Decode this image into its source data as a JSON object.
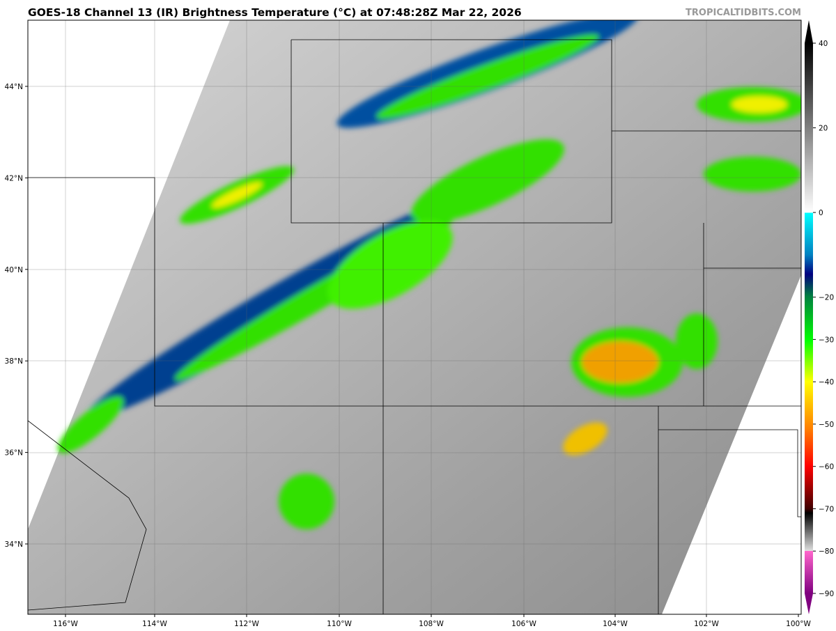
{
  "title": "GOES-18 Channel 13 (IR) Brightness Temperature (°C) at 07:48:28Z Mar 22, 2026",
  "watermark": "TROPICALTIDBITS.COM",
  "map": {
    "lon_labels": [
      "116°W",
      "114°W",
      "112°W",
      "110°W",
      "108°W",
      "106°W",
      "104°W",
      "102°W",
      "100°W"
    ],
    "lat_labels": [
      "44°N",
      "42°N",
      "40°N",
      "38°N",
      "36°N",
      "34°N"
    ]
  },
  "colorbar": {
    "ticks": [
      "40",
      "20",
      "0",
      "−20",
      "−30",
      "−40",
      "−50",
      "−60",
      "−70",
      "−80",
      "−90"
    ],
    "tick_values": [
      40,
      20,
      0,
      -20,
      -30,
      -40,
      -50,
      -60,
      -70,
      -80,
      -90
    ],
    "min": -90,
    "max": 40,
    "colors": {
      "warm": "#000000",
      "mid": "#ffffff",
      "cyan": "#00ffff",
      "navy": "#000080",
      "green": "#00ff00",
      "yellow": "#ffff00",
      "orange": "#ff8000",
      "red": "#ff0000",
      "darkred": "#400000",
      "magenta": "#ff66cc",
      "purple": "#800080"
    }
  }
}
